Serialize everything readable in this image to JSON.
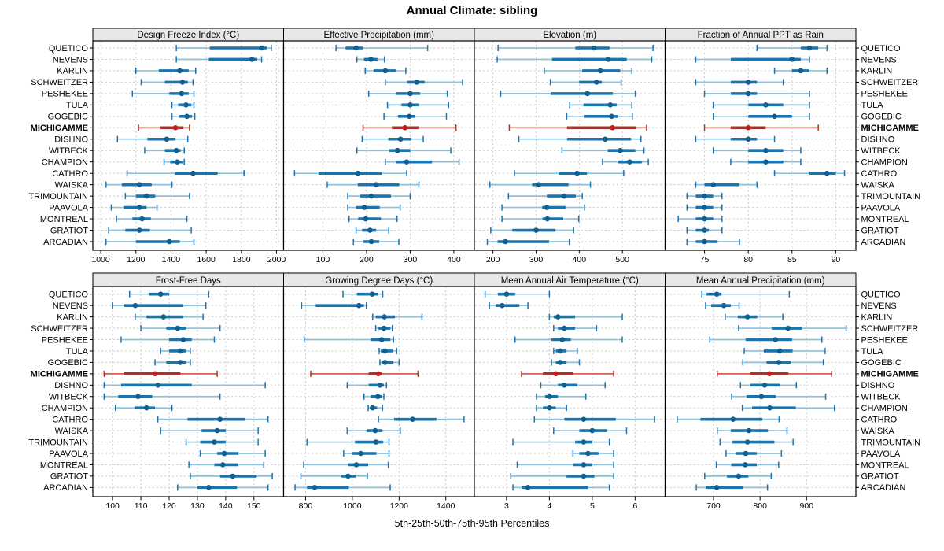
{
  "chart_data": {
    "type": "trellis-percentile-dotplot",
    "title": "Annual Climate: sibling",
    "xlabel_caption": "5th-25th-50th-75th-95th Percentiles",
    "legend_position": "none",
    "grid": "dashed",
    "highlight_site": "MICHIGAMME",
    "colors": {
      "blue_main": "#1b74ad",
      "blue_light": "#8fc1dc",
      "blue_dot": "#11608f",
      "red_main": "#b03028",
      "red_light": "#ce6256",
      "red_dot": "#c01f1f",
      "grid": "#c9c9c9",
      "header_bg": "#e8e8e8",
      "border": "#000000",
      "text": "#000000"
    },
    "sites": [
      "QUETICO",
      "NEVENS",
      "KARLIN",
      "SCHWEITZER",
      "PESHEKEE",
      "TULA",
      "GOGEBIC",
      "MICHIGAMME",
      "DISHNO",
      "WITBECK",
      "CHAMPION",
      "CATHRO",
      "WAISKA",
      "TRIMOUNTAIN",
      "PAAVOLA",
      "MONTREAL",
      "GRATIOT",
      "ARCADIAN"
    ],
    "percentiles": [
      5,
      25,
      50,
      75,
      95
    ],
    "panels": [
      {
        "title": "Design Freeze Index (°C)",
        "row": 0,
        "col": 0,
        "xlim": [
          955,
          2040
        ],
        "ticks": [
          1000,
          1200,
          1400,
          1600,
          1800,
          2000
        ],
        "series": [
          [
            1430,
            1620,
            1915,
            1945,
            1970
          ],
          [
            1430,
            1615,
            1860,
            1890,
            1915
          ],
          [
            1200,
            1330,
            1450,
            1500,
            1540
          ],
          [
            1230,
            1365,
            1465,
            1495,
            1525
          ],
          [
            1180,
            1390,
            1460,
            1500,
            1530
          ],
          [
            1405,
            1440,
            1485,
            1515,
            1530
          ],
          [
            1405,
            1445,
            1490,
            1520,
            1535
          ],
          [
            1215,
            1340,
            1425,
            1470,
            1505
          ],
          [
            1095,
            1265,
            1375,
            1425,
            1495
          ],
          [
            1250,
            1365,
            1430,
            1455,
            1475
          ],
          [
            1360,
            1395,
            1435,
            1465,
            1475
          ],
          [
            1150,
            1420,
            1525,
            1665,
            1815
          ],
          [
            1030,
            1120,
            1220,
            1290,
            1405
          ],
          [
            1140,
            1200,
            1260,
            1310,
            1505
          ],
          [
            1060,
            1130,
            1220,
            1260,
            1320
          ],
          [
            1090,
            1180,
            1235,
            1285,
            1490
          ],
          [
            1045,
            1140,
            1220,
            1280,
            1515
          ],
          [
            1030,
            1200,
            1390,
            1450,
            1530
          ]
        ]
      },
      {
        "title": "Effective Precipitation (mm)",
        "row": 0,
        "col": 1,
        "xlim": [
          10,
          447
        ],
        "ticks": [
          100,
          200,
          300,
          400
        ],
        "series": [
          [
            130,
            152,
            176,
            192,
            340
          ],
          [
            178,
            194,
            210,
            225,
            241
          ],
          [
            197,
            216,
            243,
            268,
            290
          ],
          [
            243,
            293,
            315,
            333,
            420
          ],
          [
            205,
            268,
            300,
            323,
            385
          ],
          [
            248,
            280,
            300,
            320,
            388
          ],
          [
            240,
            272,
            298,
            312,
            383
          ],
          [
            192,
            258,
            288,
            320,
            405
          ],
          [
            190,
            250,
            278,
            302,
            330
          ],
          [
            178,
            252,
            271,
            300,
            393
          ],
          [
            243,
            267,
            292,
            350,
            412
          ],
          [
            35,
            90,
            180,
            235,
            292
          ],
          [
            110,
            180,
            222,
            275,
            320
          ],
          [
            157,
            185,
            211,
            256,
            300
          ],
          [
            157,
            176,
            195,
            230,
            277
          ],
          [
            160,
            181,
            198,
            233,
            270
          ],
          [
            176,
            190,
            208,
            222,
            251
          ],
          [
            170,
            193,
            211,
            229,
            274
          ]
        ]
      },
      {
        "title": "Elevation (m)",
        "row": 0,
        "col": 2,
        "xlim": [
          157,
          599
        ],
        "ticks": [
          200,
          300,
          400,
          500
        ],
        "series": [
          [
            212,
            391,
            434,
            470,
            571
          ],
          [
            210,
            337,
            467,
            510,
            568
          ],
          [
            319,
            407,
            449,
            495,
            522
          ],
          [
            333,
            400,
            440,
            452,
            497
          ],
          [
            218,
            334,
            419,
            478,
            530
          ],
          [
            378,
            410,
            472,
            487,
            522
          ],
          [
            371,
            412,
            475,
            489,
            523
          ],
          [
            238,
            372,
            477,
            531,
            556
          ],
          [
            260,
            372,
            460,
            520,
            543
          ],
          [
            360,
            466,
            495,
            530,
            550
          ],
          [
            454,
            490,
            517,
            545,
            560
          ],
          [
            250,
            352,
            395,
            418,
            503
          ],
          [
            193,
            291,
            306,
            375,
            426
          ],
          [
            236,
            325,
            365,
            392,
            407
          ],
          [
            221,
            314,
            325,
            369,
            412
          ],
          [
            221,
            315,
            326,
            363,
            399
          ],
          [
            195,
            245,
            300,
            345,
            387
          ],
          [
            187,
            211,
            229,
            330,
            377
          ]
        ]
      },
      {
        "title": "Fraction of Annual PPT as Rain",
        "row": 0,
        "col": 3,
        "xlim": [
          70.5,
          92.3
        ],
        "ticks": [
          75,
          80,
          85,
          90
        ],
        "series": [
          [
            81,
            86,
            87,
            88,
            89
          ],
          [
            74,
            78,
            85,
            86,
            87
          ],
          [
            83,
            85,
            86,
            87,
            89
          ],
          [
            74,
            78,
            80,
            81,
            84
          ],
          [
            75,
            78,
            80,
            81,
            87
          ],
          [
            76,
            80,
            82,
            84,
            87
          ],
          [
            76,
            80,
            83,
            85,
            87
          ],
          [
            75,
            78,
            80,
            82,
            88
          ],
          [
            74,
            78,
            80,
            81,
            83
          ],
          [
            76,
            80,
            82,
            84,
            86
          ],
          [
            78,
            80,
            82,
            84,
            86
          ],
          [
            83,
            87,
            89,
            90,
            91
          ],
          [
            74,
            75,
            76,
            79,
            81
          ],
          [
            73,
            74,
            75,
            76,
            77
          ],
          [
            73,
            74,
            75,
            76,
            77
          ],
          [
            72,
            74,
            75,
            76,
            77
          ],
          [
            73,
            74,
            75,
            75.5,
            77
          ],
          [
            73,
            74,
            75,
            76.5,
            79
          ]
        ]
      },
      {
        "title": "Frost-Free Days",
        "row": 1,
        "col": 0,
        "xlim": [
          93,
          160.5
        ],
        "ticks": [
          100,
          110,
          120,
          130,
          140,
          150
        ],
        "series": [
          [
            106,
            113,
            117,
            120,
            134
          ],
          [
            100,
            104,
            108,
            125,
            133
          ],
          [
            108,
            112,
            118,
            125,
            132
          ],
          [
            110,
            119,
            123,
            126,
            138
          ],
          [
            103,
            120,
            125,
            128,
            136
          ],
          [
            117,
            120,
            124,
            126,
            127.5
          ],
          [
            115,
            119,
            124,
            126,
            127.5
          ],
          [
            97,
            104,
            115,
            124,
            137
          ],
          [
            97,
            103,
            116,
            128,
            154
          ],
          [
            97,
            102,
            109,
            114,
            138
          ],
          [
            101,
            108,
            112,
            115,
            121
          ],
          [
            116,
            126.5,
            138,
            147,
            155
          ],
          [
            117,
            131.5,
            137,
            140,
            151.5
          ],
          [
            126,
            131,
            136,
            140,
            151.5
          ],
          [
            131,
            137,
            139.5,
            144.5,
            154
          ],
          [
            127,
            136,
            139,
            144.5,
            153.5
          ],
          [
            127.5,
            138,
            142.5,
            151,
            156.5
          ],
          [
            123,
            130,
            134,
            144,
            155
          ]
        ]
      },
      {
        "title": "Growing Degree Days (°C)",
        "row": 1,
        "col": 1,
        "xlim": [
          706,
          1522
        ],
        "ticks": [
          800,
          1000,
          1200,
          1400
        ],
        "series": [
          [
            960,
            1020,
            1085,
            1110,
            1130
          ],
          [
            783,
            843,
            1028,
            1050,
            1060
          ],
          [
            1087,
            1100,
            1137,
            1182,
            1298
          ],
          [
            1100,
            1111,
            1135,
            1163,
            1171
          ],
          [
            794,
            1080,
            1126,
            1163,
            1176
          ],
          [
            1115,
            1122,
            1140,
            1174,
            1190
          ],
          [
            1118,
            1126,
            1140,
            1176,
            1200
          ],
          [
            822,
            1070,
            1111,
            1126,
            1281
          ],
          [
            978,
            1070,
            1118,
            1135,
            1146
          ],
          [
            1050,
            1079,
            1109,
            1126,
            1135
          ],
          [
            1068,
            1075,
            1087,
            1106,
            1129
          ],
          [
            1112,
            1179,
            1258,
            1360,
            1478
          ],
          [
            978,
            1062,
            1098,
            1129,
            1205
          ],
          [
            806,
            1011,
            1101,
            1132,
            1157
          ],
          [
            963,
            1000,
            1036,
            1103,
            1157
          ],
          [
            792,
            982,
            1017,
            1068,
            1154
          ],
          [
            780,
            952,
            982,
            1014,
            1064
          ],
          [
            755,
            806,
            839,
            985,
            1162
          ]
        ]
      },
      {
        "title": "Mean Annual Air Temperature (°C)",
        "row": 1,
        "col": 2,
        "xlim": [
          2.25,
          6.7
        ],
        "ticks": [
          3,
          4,
          5,
          6
        ],
        "series": [
          [
            2.5,
            2.8,
            3.0,
            3.2,
            4.0
          ],
          [
            2.6,
            2.75,
            2.9,
            3.3,
            3.5
          ],
          [
            4.0,
            4.1,
            4.2,
            4.6,
            5.7
          ],
          [
            4.1,
            4.2,
            4.35,
            4.6,
            5.1
          ],
          [
            3.2,
            4.05,
            4.3,
            4.5,
            5.7
          ],
          [
            4.1,
            4.15,
            4.25,
            4.4,
            4.65
          ],
          [
            4.05,
            4.15,
            4.25,
            4.4,
            4.7
          ],
          [
            3.35,
            3.85,
            4.15,
            4.55,
            5.5
          ],
          [
            3.8,
            4.2,
            4.35,
            4.65,
            5.3
          ],
          [
            3.7,
            3.9,
            4.0,
            4.2,
            4.85
          ],
          [
            3.7,
            3.85,
            4.0,
            4.15,
            4.4
          ],
          [
            3.65,
            4.35,
            4.8,
            5.55,
            6.45
          ],
          [
            4.1,
            4.7,
            5.0,
            5.35,
            5.8
          ],
          [
            3.15,
            4.6,
            4.8,
            5.0,
            5.4
          ],
          [
            4.55,
            4.7,
            4.9,
            5.15,
            5.5
          ],
          [
            3.25,
            4.55,
            4.8,
            5.0,
            5.5
          ],
          [
            3.1,
            4.4,
            4.8,
            5.05,
            5.5
          ],
          [
            3.15,
            3.35,
            3.5,
            4.9,
            5.4
          ]
        ]
      },
      {
        "title": "Mean Annual Precipitation (mm)",
        "row": 1,
        "col": 3,
        "xlim": [
          596,
          1006
        ],
        "ticks": [
          700,
          800,
          900
        ],
        "series": [
          [
            675,
            685,
            707,
            717,
            863
          ],
          [
            683,
            695,
            722,
            737,
            755
          ],
          [
            725,
            752,
            773,
            794,
            849
          ],
          [
            754,
            825,
            860,
            890,
            985
          ],
          [
            692,
            769,
            833,
            869,
            933
          ],
          [
            766,
            808,
            842,
            870,
            940
          ],
          [
            763,
            814,
            840,
            866,
            936
          ],
          [
            708,
            779,
            820,
            861,
            954
          ],
          [
            758,
            779,
            810,
            842,
            878
          ],
          [
            739,
            771,
            803,
            834,
            941
          ],
          [
            762,
            783,
            821,
            877,
            960
          ],
          [
            622,
            672,
            742,
            805,
            841
          ],
          [
            708,
            737,
            776,
            817,
            858
          ],
          [
            714,
            740,
            773,
            831,
            871
          ],
          [
            727,
            748,
            769,
            793,
            846
          ],
          [
            706,
            738,
            768,
            793,
            840
          ],
          [
            681,
            729,
            754,
            775,
            824
          ],
          [
            663,
            683,
            707,
            763,
            816
          ]
        ]
      }
    ]
  }
}
